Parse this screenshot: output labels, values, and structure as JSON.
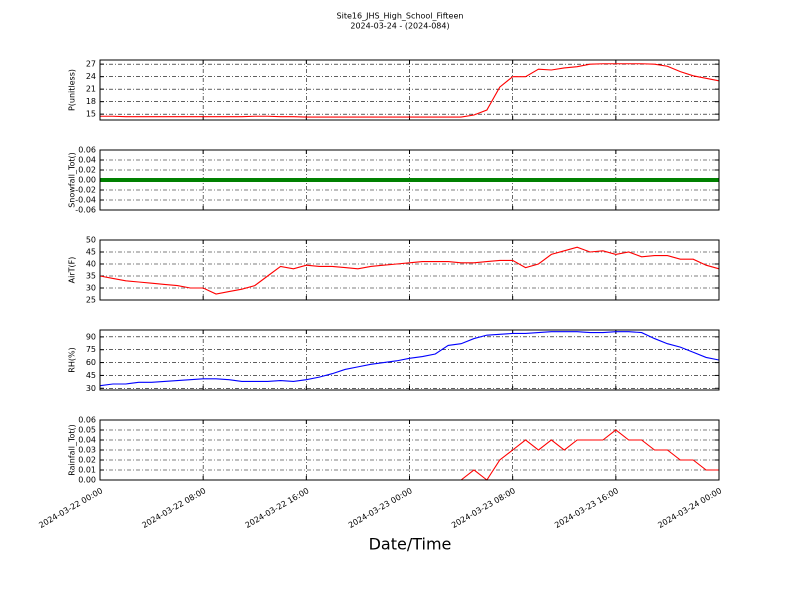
{
  "chart_data": [
    {
      "type": "line",
      "title": "Site16_JHS_High_School_Fifteen",
      "subtitle": "2024-03-24 - (2024-084)",
      "y_label": "P(unitless)",
      "color": "#ff0000",
      "x": [
        "2024-03-22 00:00",
        "2024-03-22 01:00",
        "2024-03-22 02:00",
        "2024-03-22 03:00",
        "2024-03-22 04:00",
        "2024-03-22 05:00",
        "2024-03-22 06:00",
        "2024-03-22 07:00",
        "2024-03-22 08:00",
        "2024-03-22 09:00",
        "2024-03-22 10:00",
        "2024-03-22 11:00",
        "2024-03-22 12:00",
        "2024-03-22 13:00",
        "2024-03-22 14:00",
        "2024-03-22 15:00",
        "2024-03-22 16:00",
        "2024-03-22 17:00",
        "2024-03-22 18:00",
        "2024-03-22 19:00",
        "2024-03-22 20:00",
        "2024-03-22 21:00",
        "2024-03-22 22:00",
        "2024-03-22 23:00",
        "2024-03-23 00:00",
        "2024-03-23 01:00",
        "2024-03-23 02:00",
        "2024-03-23 03:00",
        "2024-03-23 04:00",
        "2024-03-23 05:00",
        "2024-03-23 06:00",
        "2024-03-23 07:00",
        "2024-03-23 08:00",
        "2024-03-23 09:00",
        "2024-03-23 10:00",
        "2024-03-23 11:00",
        "2024-03-23 12:00",
        "2024-03-23 13:00",
        "2024-03-23 14:00",
        "2024-03-23 15:00",
        "2024-03-23 16:00",
        "2024-03-23 17:00",
        "2024-03-23 18:00",
        "2024-03-23 19:00",
        "2024-03-23 20:00",
        "2024-03-23 21:00",
        "2024-03-23 22:00",
        "2024-03-23 23:00",
        "2024-03-24 00:00"
      ],
      "values": [
        14.5,
        14.5,
        14.4,
        14.4,
        14.4,
        14.4,
        14.4,
        14.4,
        14.4,
        14.4,
        14.4,
        14.4,
        14.5,
        14.5,
        14.4,
        14.4,
        14.3,
        14.3,
        14.3,
        14.3,
        14.3,
        14.3,
        14.3,
        14.3,
        14.3,
        14.3,
        14.3,
        14.3,
        14.3,
        14.8,
        16,
        21.5,
        24,
        24,
        25.8,
        25.6,
        26.1,
        26.4,
        27,
        27.1,
        27.1,
        27.1,
        27.1,
        27,
        26.5,
        25.2,
        24.2,
        23.6,
        23
      ],
      "xlim": [
        "2024-03-22 00:00",
        "2024-03-24 00:00"
      ],
      "xticks": [
        "2024-03-22 00:00",
        "2024-03-22 08:00",
        "2024-03-22 16:00",
        "2024-03-23 00:00",
        "2024-03-23 08:00",
        "2024-03-23 16:00",
        "2024-03-24 00:00"
      ],
      "ylim": [
        13.6,
        28
      ],
      "yticks": [
        15,
        18,
        21,
        24,
        27
      ],
      "grid": true
    },
    {
      "type": "line",
      "y_label": "Snowfall_Tot()",
      "color": "#008000",
      "x": [
        "2024-03-22 00:00",
        "2024-03-22 01:00",
        "2024-03-22 02:00",
        "2024-03-22 03:00",
        "2024-03-22 04:00",
        "2024-03-22 05:00",
        "2024-03-22 06:00",
        "2024-03-22 07:00",
        "2024-03-22 08:00",
        "2024-03-22 09:00",
        "2024-03-22 10:00",
        "2024-03-22 11:00",
        "2024-03-22 12:00",
        "2024-03-22 13:00",
        "2024-03-22 14:00",
        "2024-03-22 15:00",
        "2024-03-22 16:00",
        "2024-03-22 17:00",
        "2024-03-22 18:00",
        "2024-03-22 19:00",
        "2024-03-22 20:00",
        "2024-03-22 21:00",
        "2024-03-22 22:00",
        "2024-03-22 23:00",
        "2024-03-23 00:00",
        "2024-03-23 01:00",
        "2024-03-23 02:00",
        "2024-03-23 03:00",
        "2024-03-23 04:00",
        "2024-03-23 05:00",
        "2024-03-23 06:00",
        "2024-03-23 07:00",
        "2024-03-23 08:00",
        "2024-03-23 09:00",
        "2024-03-23 10:00",
        "2024-03-23 11:00",
        "2024-03-23 12:00",
        "2024-03-23 13:00",
        "2024-03-23 14:00",
        "2024-03-23 15:00",
        "2024-03-23 16:00",
        "2024-03-23 17:00",
        "2024-03-23 18:00",
        "2024-03-23 19:00",
        "2024-03-23 20:00",
        "2024-03-23 21:00",
        "2024-03-23 22:00",
        "2024-03-23 23:00",
        "2024-03-24 00:00"
      ],
      "values": [
        0,
        0,
        0,
        0,
        0,
        0,
        0,
        0,
        0,
        0,
        0,
        0,
        0,
        0,
        0,
        0,
        0,
        0,
        0,
        0,
        0,
        0,
        0,
        0,
        0,
        0,
        0,
        0,
        0,
        0,
        0,
        0,
        0,
        0,
        0,
        0,
        0,
        0,
        0,
        0,
        0,
        0,
        0,
        0,
        0,
        0,
        0,
        0,
        0
      ],
      "xlim": [
        "2024-03-22 00:00",
        "2024-03-24 00:00"
      ],
      "xticks": [
        "2024-03-22 00:00",
        "2024-03-22 08:00",
        "2024-03-22 16:00",
        "2024-03-23 00:00",
        "2024-03-23 08:00",
        "2024-03-23 16:00",
        "2024-03-24 00:00"
      ],
      "ylim": [
        -0.06,
        0.06
      ],
      "yticks": [
        -0.06,
        -0.04,
        -0.02,
        {
          "value": 0,
          "label": "0.00"
        },
        0.02,
        0.04,
        0.06
      ],
      "grid": true
    },
    {
      "type": "line",
      "y_label": "AirT(F)",
      "color": "#ff0000",
      "x": [
        "2024-03-22 00:00",
        "2024-03-22 01:00",
        "2024-03-22 02:00",
        "2024-03-22 03:00",
        "2024-03-22 04:00",
        "2024-03-22 05:00",
        "2024-03-22 06:00",
        "2024-03-22 07:00",
        "2024-03-22 08:00",
        "2024-03-22 09:00",
        "2024-03-22 10:00",
        "2024-03-22 11:00",
        "2024-03-22 12:00",
        "2024-03-22 13:00",
        "2024-03-22 14:00",
        "2024-03-22 15:00",
        "2024-03-22 16:00",
        "2024-03-22 17:00",
        "2024-03-22 18:00",
        "2024-03-22 19:00",
        "2024-03-22 20:00",
        "2024-03-22 21:00",
        "2024-03-22 22:00",
        "2024-03-22 23:00",
        "2024-03-23 00:00",
        "2024-03-23 01:00",
        "2024-03-23 02:00",
        "2024-03-23 03:00",
        "2024-03-23 04:00",
        "2024-03-23 05:00",
        "2024-03-23 06:00",
        "2024-03-23 07:00",
        "2024-03-23 08:00",
        "2024-03-23 09:00",
        "2024-03-23 10:00",
        "2024-03-23 11:00",
        "2024-03-23 12:00",
        "2024-03-23 13:00",
        "2024-03-23 14:00",
        "2024-03-23 15:00",
        "2024-03-23 16:00",
        "2024-03-23 17:00",
        "2024-03-23 18:00",
        "2024-03-23 19:00",
        "2024-03-23 20:00",
        "2024-03-23 21:00",
        "2024-03-23 22:00",
        "2024-03-23 23:00",
        "2024-03-24 00:00"
      ],
      "values": [
        35,
        34,
        33,
        32.5,
        32,
        31.5,
        31,
        30,
        30,
        27.5,
        28.5,
        29.5,
        31,
        35,
        39,
        38,
        39.5,
        39,
        39,
        38.5,
        38,
        39,
        39.5,
        40,
        40.5,
        41,
        41,
        41,
        40.5,
        40.5,
        41,
        41.5,
        41.5,
        38.5,
        40,
        44,
        45.5,
        47,
        45,
        45.5,
        44,
        45,
        43,
        43.5,
        43.5,
        42,
        42,
        39.5,
        38
      ],
      "xlim": [
        "2024-03-22 00:00",
        "2024-03-24 00:00"
      ],
      "xticks": [
        "2024-03-22 00:00",
        "2024-03-22 08:00",
        "2024-03-22 16:00",
        "2024-03-23 00:00",
        "2024-03-23 08:00",
        "2024-03-23 16:00",
        "2024-03-24 00:00"
      ],
      "ylim": [
        25,
        50
      ],
      "yticks": [
        25,
        30,
        35,
        40,
        45,
        50
      ],
      "grid": true
    },
    {
      "type": "line",
      "y_label": "RH(%)",
      "color": "#0000ff",
      "x": [
        "2024-03-22 00:00",
        "2024-03-22 01:00",
        "2024-03-22 02:00",
        "2024-03-22 03:00",
        "2024-03-22 04:00",
        "2024-03-22 05:00",
        "2024-03-22 06:00",
        "2024-03-22 07:00",
        "2024-03-22 08:00",
        "2024-03-22 09:00",
        "2024-03-22 10:00",
        "2024-03-22 11:00",
        "2024-03-22 12:00",
        "2024-03-22 13:00",
        "2024-03-22 14:00",
        "2024-03-22 15:00",
        "2024-03-22 16:00",
        "2024-03-22 17:00",
        "2024-03-22 18:00",
        "2024-03-22 19:00",
        "2024-03-22 20:00",
        "2024-03-22 21:00",
        "2024-03-22 22:00",
        "2024-03-22 23:00",
        "2024-03-23 00:00",
        "2024-03-23 01:00",
        "2024-03-23 02:00",
        "2024-03-23 03:00",
        "2024-03-23 04:00",
        "2024-03-23 05:00",
        "2024-03-23 06:00",
        "2024-03-23 07:00",
        "2024-03-23 08:00",
        "2024-03-23 09:00",
        "2024-03-23 10:00",
        "2024-03-23 11:00",
        "2024-03-23 12:00",
        "2024-03-23 13:00",
        "2024-03-23 14:00",
        "2024-03-23 15:00",
        "2024-03-23 16:00",
        "2024-03-23 17:00",
        "2024-03-23 18:00",
        "2024-03-23 19:00",
        "2024-03-23 20:00",
        "2024-03-23 21:00",
        "2024-03-23 22:00",
        "2024-03-23 23:00",
        "2024-03-24 00:00"
      ],
      "values": [
        33,
        35,
        35,
        37,
        37,
        38,
        39,
        40,
        41,
        41,
        40,
        38,
        38,
        38,
        39,
        38,
        40,
        43,
        47,
        52,
        55,
        58,
        60,
        62,
        65,
        67,
        70,
        80,
        82,
        88,
        92,
        93,
        94,
        94,
        95,
        96,
        96,
        96,
        95,
        95,
        96,
        96,
        95,
        88,
        82,
        78,
        72,
        66,
        63
      ],
      "xlim": [
        "2024-03-22 00:00",
        "2024-03-24 00:00"
      ],
      "xticks": [
        "2024-03-22 00:00",
        "2024-03-22 08:00",
        "2024-03-22 16:00",
        "2024-03-23 00:00",
        "2024-03-23 08:00",
        "2024-03-23 16:00",
        "2024-03-24 00:00"
      ],
      "ylim": [
        28,
        98
      ],
      "yticks": [
        30,
        45,
        60,
        75,
        90
      ],
      "grid": true
    },
    {
      "type": "line",
      "y_label": "Rainfall_Tot()",
      "x_label": "Date/Time",
      "color": "#ff0000",
      "x": [
        "2024-03-22 00:00",
        "2024-03-22 01:00",
        "2024-03-22 02:00",
        "2024-03-22 03:00",
        "2024-03-22 04:00",
        "2024-03-22 05:00",
        "2024-03-22 06:00",
        "2024-03-22 07:00",
        "2024-03-22 08:00",
        "2024-03-22 09:00",
        "2024-03-22 10:00",
        "2024-03-22 11:00",
        "2024-03-22 12:00",
        "2024-03-22 13:00",
        "2024-03-22 14:00",
        "2024-03-22 15:00",
        "2024-03-22 16:00",
        "2024-03-22 17:00",
        "2024-03-22 18:00",
        "2024-03-22 19:00",
        "2024-03-22 20:00",
        "2024-03-22 21:00",
        "2024-03-22 22:00",
        "2024-03-22 23:00",
        "2024-03-23 00:00",
        "2024-03-23 01:00",
        "2024-03-23 02:00",
        "2024-03-23 03:00",
        "2024-03-23 04:00",
        "2024-03-23 05:00",
        "2024-03-23 06:00",
        "2024-03-23 07:00",
        "2024-03-23 08:00",
        "2024-03-23 09:00",
        "2024-03-23 10:00",
        "2024-03-23 11:00",
        "2024-03-23 12:00",
        "2024-03-23 13:00",
        "2024-03-23 14:00",
        "2024-03-23 15:00",
        "2024-03-23 16:00",
        "2024-03-23 17:00",
        "2024-03-23 18:00",
        "2024-03-23 19:00",
        "2024-03-23 20:00",
        "2024-03-23 21:00",
        "2024-03-23 22:00",
        "2024-03-23 23:00",
        "2024-03-24 00:00"
      ],
      "values": [
        0,
        0,
        0,
        0,
        0,
        0,
        0,
        0,
        0,
        0,
        0,
        0,
        0,
        0,
        0,
        0,
        0,
        0,
        0,
        0,
        0,
        0,
        0,
        0,
        0,
        0,
        0,
        0,
        0,
        0.01,
        0,
        0.02,
        0.03,
        0.04,
        0.03,
        0.04,
        0.03,
        0.04,
        0.04,
        0.04,
        0.05,
        0.04,
        0.04,
        0.03,
        0.03,
        0.02,
        0.02,
        0.01,
        0.01
      ],
      "xlim": [
        "2024-03-22 00:00",
        "2024-03-24 00:00"
      ],
      "xticks": [
        "2024-03-22 00:00",
        "2024-03-22 08:00",
        "2024-03-22 16:00",
        "2024-03-23 00:00",
        "2024-03-23 08:00",
        "2024-03-23 16:00",
        "2024-03-24 00:00"
      ],
      "ylim": [
        0,
        0.06
      ],
      "yticks": [
        {
          "value": 0,
          "label": "0.00"
        },
        0.01,
        0.02,
        0.03,
        0.04,
        0.05,
        0.06
      ],
      "grid": true
    }
  ]
}
